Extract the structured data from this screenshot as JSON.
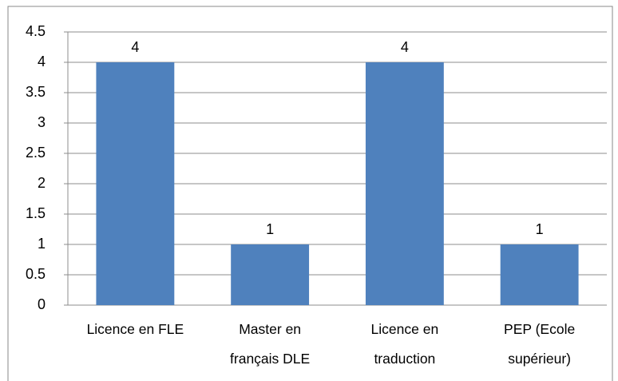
{
  "chart_data": {
    "type": "bar",
    "categories": [
      "Licence en FLE",
      "Master en français DLE",
      "Licence en traduction",
      "PEP (Ecole supérieur)"
    ],
    "values": [
      4,
      1,
      4,
      1
    ],
    "color": "#4f81bd",
    "ylim": [
      0,
      4.5
    ],
    "yticks": [
      0,
      0.5,
      1,
      1.5,
      2,
      2.5,
      3,
      3.5,
      4,
      4.5
    ],
    "grid": true
  }
}
